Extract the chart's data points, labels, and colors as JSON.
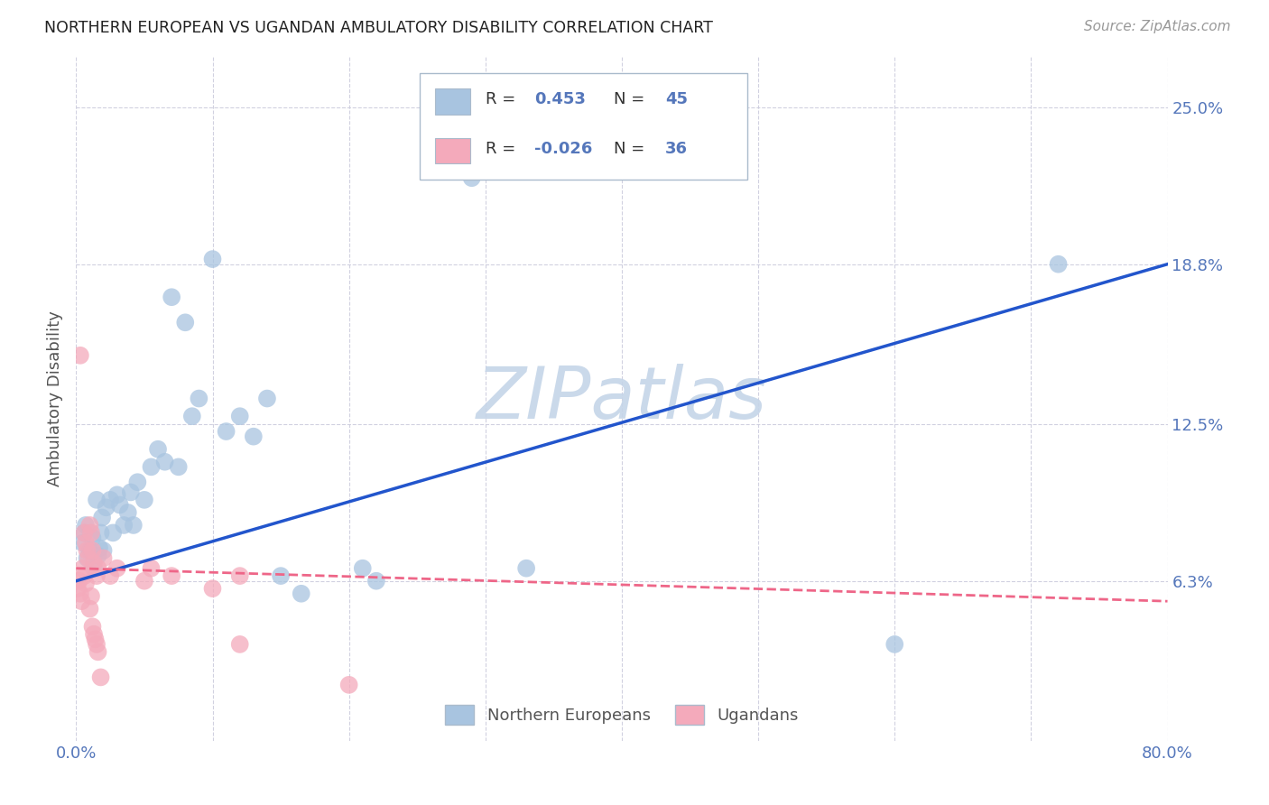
{
  "title": "NORTHERN EUROPEAN VS UGANDAN AMBULATORY DISABILITY CORRELATION CHART",
  "source": "Source: ZipAtlas.com",
  "ylabel": "Ambulatory Disability",
  "ytick_labels": [
    "6.3%",
    "12.5%",
    "18.8%",
    "25.0%"
  ],
  "ytick_values": [
    0.063,
    0.125,
    0.188,
    0.25
  ],
  "xlim": [
    0.0,
    0.8
  ],
  "ylim": [
    0.0,
    0.27
  ],
  "blue_R": "0.453",
  "blue_N": "45",
  "pink_R": "-0.026",
  "pink_N": "36",
  "blue_color": "#A8C4E0",
  "pink_color": "#F4AABB",
  "blue_line_color": "#2255CC",
  "pink_line_color": "#EE6688",
  "watermark": "ZIPatlas",
  "watermark_color": "#C5D5E8",
  "background_color": "#FFFFFF",
  "grid_color": "#CCCCDD",
  "title_color": "#222222",
  "tick_label_color": "#5577BB",
  "legend_text_color": "#5577BB",
  "legend_border_color": "#AABBCC",
  "blue_scatter_x": [
    0.005,
    0.006,
    0.007,
    0.008,
    0.01,
    0.012,
    0.013,
    0.015,
    0.016,
    0.017,
    0.018,
    0.019,
    0.02,
    0.022,
    0.025,
    0.027,
    0.03,
    0.032,
    0.035,
    0.038,
    0.04,
    0.042,
    0.045,
    0.05,
    0.055,
    0.06,
    0.065,
    0.07,
    0.075,
    0.08,
    0.085,
    0.09,
    0.1,
    0.11,
    0.12,
    0.13,
    0.14,
    0.15,
    0.165,
    0.21,
    0.22,
    0.29,
    0.33,
    0.6,
    0.72
  ],
  "blue_scatter_y": [
    0.078,
    0.082,
    0.085,
    0.072,
    0.075,
    0.08,
    0.068,
    0.095,
    0.073,
    0.076,
    0.082,
    0.088,
    0.075,
    0.092,
    0.095,
    0.082,
    0.097,
    0.093,
    0.085,
    0.09,
    0.098,
    0.085,
    0.102,
    0.095,
    0.108,
    0.115,
    0.11,
    0.175,
    0.108,
    0.165,
    0.128,
    0.135,
    0.19,
    0.122,
    0.128,
    0.12,
    0.135,
    0.065,
    0.058,
    0.068,
    0.063,
    0.222,
    0.068,
    0.038,
    0.188
  ],
  "pink_scatter_x": [
    0.001,
    0.002,
    0.003,
    0.004,
    0.005,
    0.006,
    0.006,
    0.007,
    0.007,
    0.008,
    0.009,
    0.01,
    0.01,
    0.011,
    0.011,
    0.012,
    0.012,
    0.013,
    0.013,
    0.014,
    0.015,
    0.015,
    0.016,
    0.016,
    0.018,
    0.02,
    0.025,
    0.03,
    0.05,
    0.055,
    0.07,
    0.1,
    0.12,
    0.003,
    0.12,
    0.2
  ],
  "pink_scatter_y": [
    0.06,
    0.063,
    0.058,
    0.055,
    0.068,
    0.065,
    0.082,
    0.062,
    0.078,
    0.075,
    0.072,
    0.052,
    0.085,
    0.057,
    0.082,
    0.045,
    0.075,
    0.042,
    0.07,
    0.04,
    0.038,
    0.065,
    0.035,
    0.068,
    0.025,
    0.072,
    0.065,
    0.068,
    0.063,
    0.068,
    0.065,
    0.06,
    0.065,
    0.152,
    0.038,
    0.022
  ],
  "blue_line_x": [
    0.0,
    0.8
  ],
  "blue_line_y": [
    0.063,
    0.188
  ],
  "pink_line_x": [
    0.0,
    0.8
  ],
  "pink_line_y": [
    0.068,
    0.055
  ]
}
